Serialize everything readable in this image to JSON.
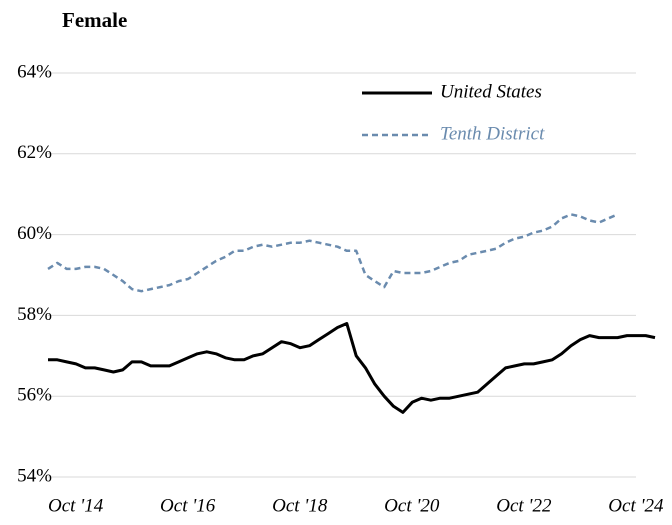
{
  "chart_data": {
    "type": "line",
    "title": "Female",
    "categories": [
      "Oct '14",
      null,
      null,
      null,
      null,
      null,
      null,
      null,
      null,
      null,
      null,
      null,
      "Oct '16",
      null,
      null,
      null,
      null,
      null,
      null,
      null,
      null,
      null,
      null,
      null,
      "Oct '18",
      null,
      null,
      null,
      null,
      null,
      null,
      null,
      null,
      null,
      null,
      null,
      "Oct '20",
      null,
      null,
      null,
      null,
      null,
      null,
      null,
      null,
      null,
      null,
      null,
      "Oct '22",
      null,
      null,
      null,
      null,
      null,
      null,
      null,
      null,
      null,
      null,
      null,
      "Oct '24",
      null,
      null,
      null,
      null,
      null
    ],
    "series": [
      {
        "name": "United States",
        "color": "#000000",
        "dash": false,
        "values": [
          56.9,
          56.9,
          56.85,
          56.8,
          56.7,
          56.7,
          56.65,
          56.6,
          56.65,
          56.85,
          56.85,
          56.75,
          56.75,
          56.75,
          56.85,
          56.95,
          57.05,
          57.1,
          57.05,
          56.95,
          56.9,
          56.9,
          57.0,
          57.05,
          57.2,
          57.35,
          57.3,
          57.2,
          57.25,
          57.4,
          57.55,
          57.7,
          57.8,
          57.0,
          56.7,
          56.3,
          56.0,
          55.75,
          55.6,
          55.85,
          55.95,
          55.9,
          55.95,
          55.95,
          56.0,
          56.05,
          56.1,
          56.3,
          56.5,
          56.7,
          56.75,
          56.8,
          56.8,
          56.85,
          56.9,
          57.05,
          57.25,
          57.4,
          57.5,
          57.45,
          57.45,
          57.45,
          57.5,
          57.5,
          57.5,
          57.45
        ]
      },
      {
        "name": "Tenth District",
        "color": "#6a8bae",
        "dash": true,
        "values": [
          59.15,
          59.3,
          59.15,
          59.15,
          59.2,
          59.2,
          59.15,
          59.0,
          58.85,
          58.65,
          58.6,
          58.65,
          58.7,
          58.75,
          58.85,
          58.9,
          59.05,
          59.2,
          59.35,
          59.45,
          59.6,
          59.6,
          59.7,
          59.75,
          59.7,
          59.75,
          59.8,
          59.8,
          59.85,
          59.8,
          59.75,
          59.7,
          59.6,
          59.6,
          59.0,
          58.85,
          58.7,
          59.1,
          59.05,
          59.05,
          59.05,
          59.1,
          59.2,
          59.3,
          59.35,
          59.5,
          59.55,
          59.6,
          59.65,
          59.8,
          59.9,
          59.95,
          60.05,
          60.1,
          60.2,
          60.4,
          60.5,
          60.45,
          60.35,
          60.3,
          60.4,
          60.5,
          null,
          null,
          null,
          null
        ]
      }
    ],
    "ylim": [
      54,
      64
    ],
    "yticks": [
      {
        "value": 54,
        "label": "54%"
      },
      {
        "value": 56,
        "label": "56%"
      },
      {
        "value": 58,
        "label": "58%"
      },
      {
        "value": 60,
        "label": "60%"
      },
      {
        "value": 62,
        "label": "62%"
      },
      {
        "value": 64,
        "label": "64%"
      }
    ],
    "grid": true,
    "legend": "top-right"
  }
}
